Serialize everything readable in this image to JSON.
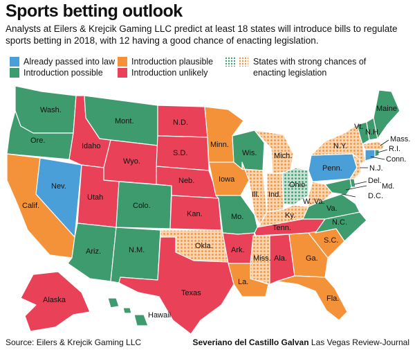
{
  "title": "Sports betting outlook",
  "subtitle": "Analysts at Eilers & Krejcik Gaming LLC predict at least 18 states will introduce bills to regulate sports betting in 2018, with 12 having a good chance of enacting legislation.",
  "colors": {
    "passed": "#4a9fd8",
    "possible": "#3e9b6e",
    "plausible": "#f4923a",
    "unlikely": "#e94158",
    "strong_green": "#3e9b6e",
    "strong_orange": "#f4923a"
  },
  "legend": {
    "passed": "Already passed into law",
    "possible": "Introduction possible",
    "plausible": "Introduction plausible",
    "unlikely": "Introduction unlikely",
    "strong_line1": "States with strong chances of",
    "strong_line2": "enacting legislation"
  },
  "states": {
    "wash": "Wash.",
    "ore": "Ore.",
    "idaho": "Idaho",
    "mont": "Mont.",
    "wyo": "Wyo.",
    "nev": "Nev.",
    "calif": "Calif.",
    "utah": "Utah",
    "colo": "Colo.",
    "ariz": "Ariz.",
    "nm": "N.M.",
    "nd": "N.D.",
    "sd": "S.D.",
    "neb": "Neb.",
    "kan": "Kan.",
    "okla": "Okla.",
    "texas": "Texas",
    "minn": "Minn.",
    "iowa": "Iowa",
    "mo": "Mo.",
    "ark": "Ark.",
    "la": "La.",
    "wis": "Wis.",
    "ill": "Ill.",
    "mich": "Mich.",
    "ind": "Ind.",
    "ohio": "Ohio",
    "ky": "Ky.",
    "tenn": "Tenn.",
    "miss": "Miss.",
    "ala": "Ala.",
    "ga": "Ga.",
    "fla": "Fla.",
    "sc": "S.C.",
    "nc": "N.C.",
    "va": "Va.",
    "wva": "W. Va.",
    "penn": "Penn.",
    "ny": "N.Y.",
    "vt": "Vt.",
    "nh": "N.H.",
    "maine": "Maine",
    "mass": "Mass.",
    "ri": "R.I.",
    "conn": "Conn.",
    "nj": "N.J.",
    "del": "Del.",
    "md": "Md.",
    "dc": "D.C.",
    "alaska": "Alaska",
    "hawaii": "Hawaii"
  },
  "footer": {
    "source": "Source: Eilers & Krejcik Gaming LLC",
    "author": "Severiano del Castillo Galvan",
    "outlet": "Las Vegas Review-Journal"
  }
}
